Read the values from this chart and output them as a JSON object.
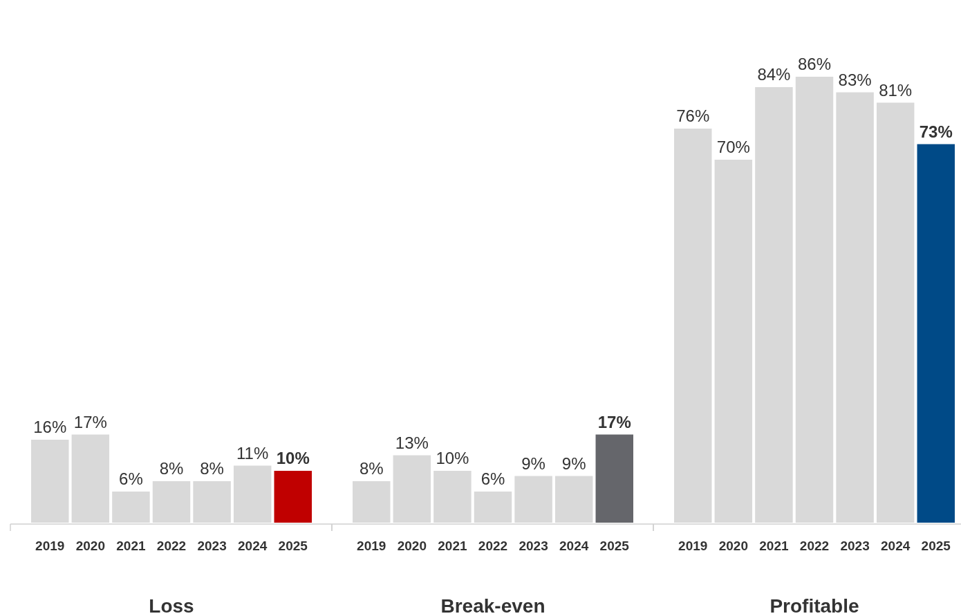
{
  "chart_data": [
    {
      "type": "bar",
      "xlabel": "Loss",
      "categories": [
        "2019",
        "2020",
        "2021",
        "2022",
        "2023",
        "2024",
        "2025"
      ],
      "values": [
        16,
        17,
        6,
        8,
        8,
        11,
        10
      ],
      "colors": [
        "#d9d9d9",
        "#d9d9d9",
        "#d9d9d9",
        "#d9d9d9",
        "#d9d9d9",
        "#d9d9d9",
        "#c00000"
      ],
      "value_labels": [
        "16%",
        "17%",
        "6%",
        "8%",
        "8%",
        "11%",
        "10%"
      ]
    },
    {
      "type": "bar",
      "xlabel": "Break-even",
      "categories": [
        "2019",
        "2020",
        "2021",
        "2022",
        "2023",
        "2024",
        "2025"
      ],
      "values": [
        8,
        13,
        10,
        6,
        9,
        9,
        17
      ],
      "colors": [
        "#d9d9d9",
        "#d9d9d9",
        "#d9d9d9",
        "#d9d9d9",
        "#d9d9d9",
        "#d9d9d9",
        "#65666b"
      ],
      "value_labels": [
        "8%",
        "13%",
        "10%",
        "6%",
        "9%",
        "9%",
        "17%"
      ]
    },
    {
      "type": "bar",
      "xlabel": "Profitable",
      "categories": [
        "2019",
        "2020",
        "2021",
        "2022",
        "2023",
        "2024",
        "2025"
      ],
      "values": [
        76,
        70,
        84,
        86,
        83,
        81,
        73
      ],
      "colors": [
        "#d9d9d9",
        "#d9d9d9",
        "#d9d9d9",
        "#d9d9d9",
        "#d9d9d9",
        "#d9d9d9",
        "#004a87"
      ],
      "value_labels": [
        "76%",
        "70%",
        "84%",
        "86%",
        "83%",
        "81%",
        "73%"
      ]
    }
  ]
}
